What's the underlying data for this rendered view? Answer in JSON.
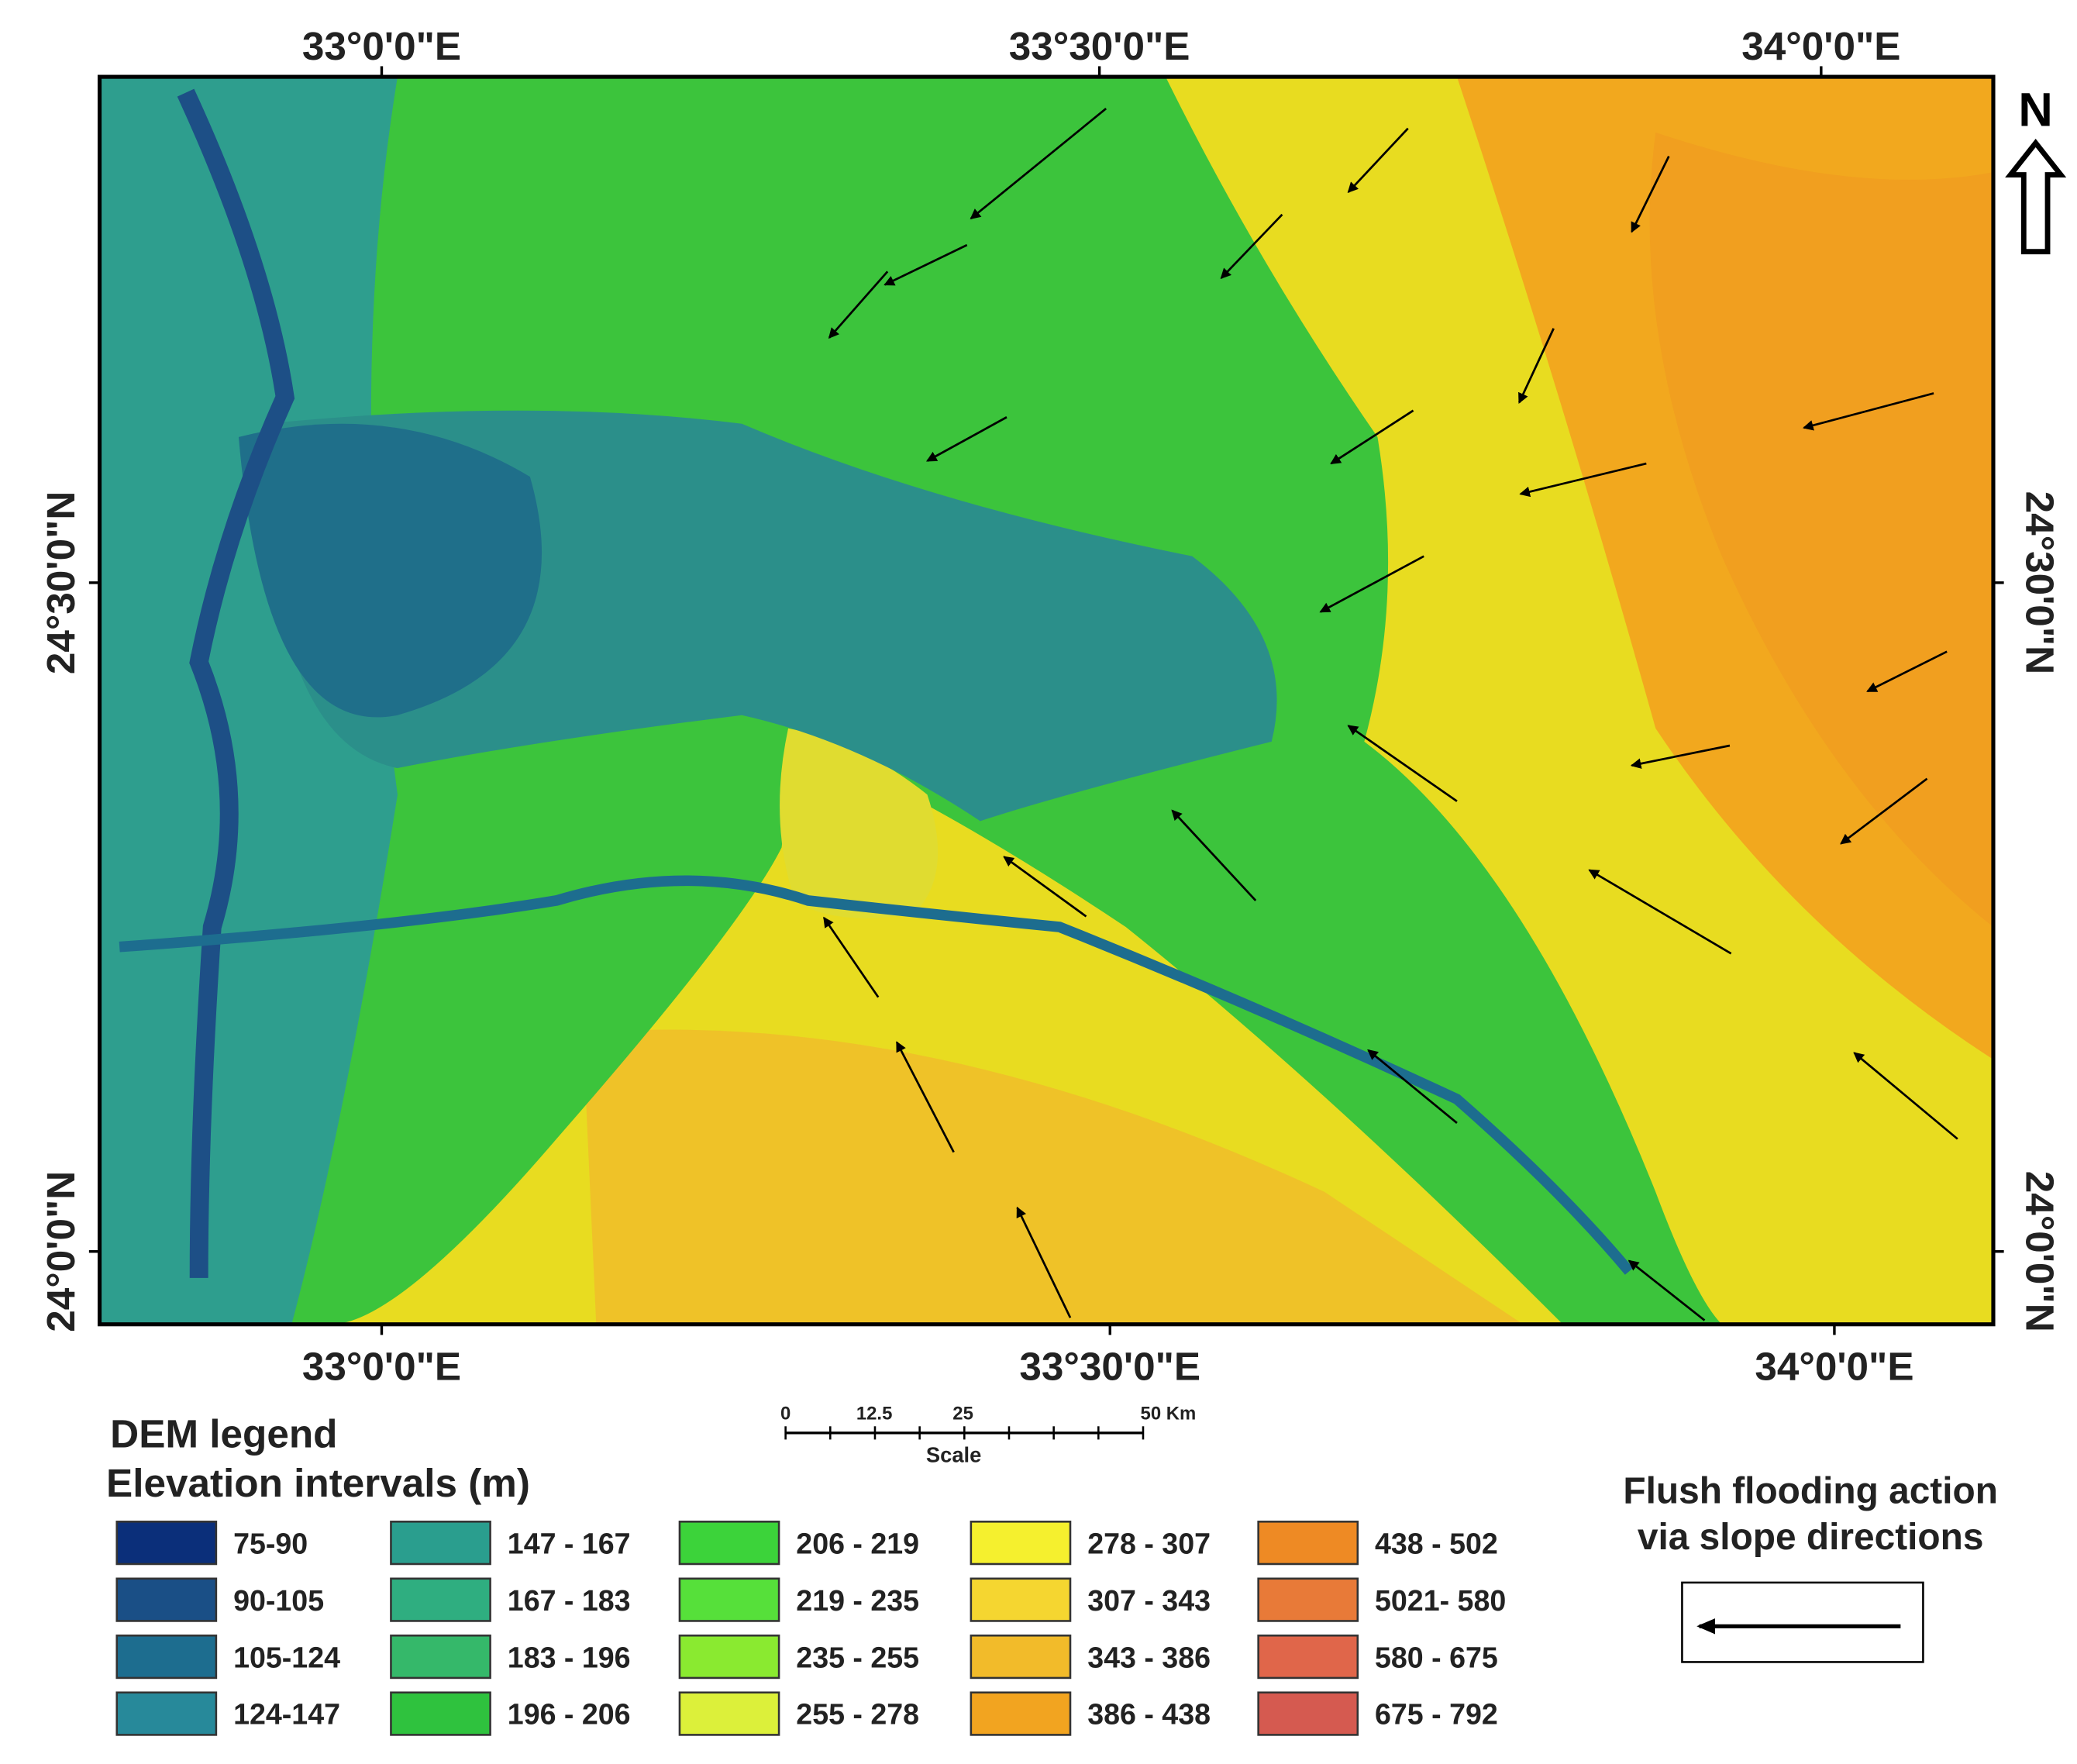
{
  "axes": {
    "top": [
      "33°0'0\"E",
      "33°30'0\"E",
      "34°0'0\"E"
    ],
    "bottom": [
      "33°0'0\"E",
      "33°30'0\"E",
      "34°0'0\"E"
    ],
    "left": [
      "24°30'0\"N",
      "24°0'0\"N"
    ],
    "right": [
      "24°30'0\"N",
      "24°0'0\"N"
    ]
  },
  "north": "N",
  "scale": {
    "ticks": [
      "0",
      "12.5",
      "25",
      "50 Km"
    ],
    "label": "Scale"
  },
  "legend": {
    "title": "DEM legend",
    "subtitle": "Elevation intervals (m)",
    "items": [
      {
        "label": "75-90",
        "color": "#0b2f7a"
      },
      {
        "label": "90-105",
        "color": "#1a4f86"
      },
      {
        "label": "105-124",
        "color": "#1d6d8f"
      },
      {
        "label": "124-147",
        "color": "#27899a"
      },
      {
        "label": "147 - 167",
        "color": "#2a9e8e"
      },
      {
        "label": "167 - 183",
        "color": "#2fae80"
      },
      {
        "label": "183 - 196",
        "color": "#35b86a"
      },
      {
        "label": "196 - 206",
        "color": "#2fc23e"
      },
      {
        "label": "206 - 219",
        "color": "#3cd33a"
      },
      {
        "label": "219 - 235",
        "color": "#56e03a"
      },
      {
        "label": "235 - 255",
        "color": "#8aea30"
      },
      {
        "label": "255 - 278",
        "color": "#dcf03a"
      },
      {
        "label": "278 - 307",
        "color": "#f5f02e"
      },
      {
        "label": "307 - 343",
        "color": "#f5d630"
      },
      {
        "label": "343 - 386",
        "color": "#f2bb2a"
      },
      {
        "label": "386 - 438",
        "color": "#f2a420"
      },
      {
        "label": "438 - 502",
        "color": "#ee8a24"
      },
      {
        "label": "5021- 580",
        "color": "#e87a38"
      },
      {
        "label": "580 - 675",
        "color": "#e0664a"
      },
      {
        "label": "675 - 792",
        "color": "#d55a50"
      }
    ]
  },
  "flood_legend": {
    "title": [
      "Flush flooding action",
      "via slope directions"
    ]
  }
}
